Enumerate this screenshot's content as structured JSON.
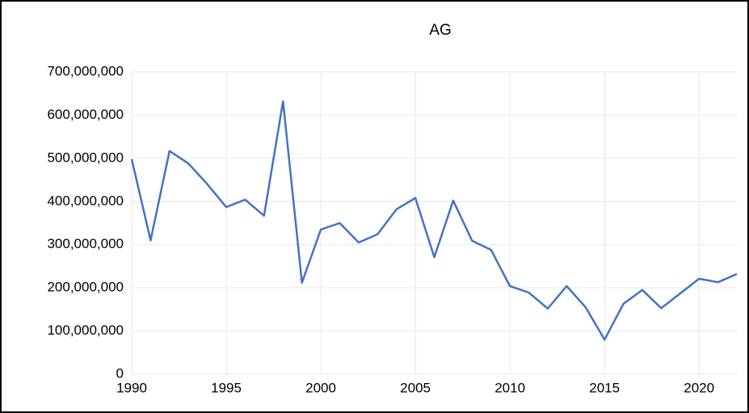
{
  "chart_data": {
    "type": "line",
    "title": "AG",
    "x": [
      1990,
      1991,
      1992,
      1993,
      1994,
      1995,
      1996,
      1997,
      1998,
      1999,
      2000,
      2001,
      2002,
      2003,
      2004,
      2005,
      2006,
      2007,
      2008,
      2009,
      2010,
      2011,
      2012,
      2013,
      2014,
      2015,
      2016,
      2017,
      2018,
      2019,
      2020,
      2021,
      2022
    ],
    "series": [
      {
        "name": "AG",
        "color": "#4472c4",
        "values": [
          498000000,
          310000000,
          517000000,
          488000000,
          440000000,
          387000000,
          404000000,
          367000000,
          632000000,
          212000000,
          335000000,
          350000000,
          305000000,
          324000000,
          382000000,
          408000000,
          271000000,
          402000000,
          309000000,
          288000000,
          204000000,
          189000000,
          152000000,
          204000000,
          155000000,
          80000000,
          163000000,
          195000000,
          153000000,
          187000000,
          221000000,
          213000000,
          232000000
        ]
      }
    ],
    "xlim": [
      1990,
      2022
    ],
    "xticks": [
      1990,
      1995,
      2000,
      2005,
      2010,
      2015,
      2020
    ],
    "ylim": [
      0,
      700000000
    ],
    "yticks": [
      0,
      {
        "value": 100000000,
        "label": "100,000,000"
      },
      {
        "value": 200000000,
        "label": "200,000,000"
      },
      {
        "value": 300000000,
        "label": "300,000,000"
      },
      {
        "value": 400000000,
        "label": "400,000,000"
      },
      {
        "value": 500000000,
        "label": "500,000,000"
      },
      {
        "value": 600000000,
        "label": "600,000,000"
      },
      {
        "value": 700000000,
        "label": "700,000,000"
      }
    ],
    "grid": true
  }
}
